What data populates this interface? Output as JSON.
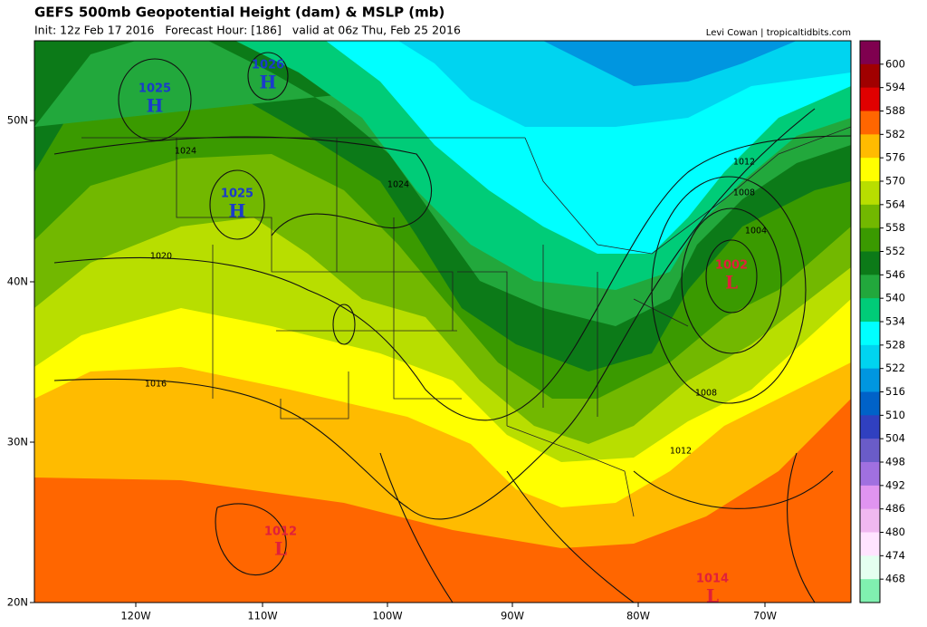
{
  "header": {
    "title": "GEFS 500mb Geopotential Height (dam) & MSLP (mb)",
    "subtitle": "Init: 12z Feb 17 2016   Forecast Hour: [186]   valid at 06z Thu, Feb 25 2016",
    "credit": "Levi Cowan | tropicaltidbits.com"
  },
  "colorbar": {
    "levels": [
      600,
      594,
      588,
      582,
      576,
      570,
      564,
      558,
      552,
      546,
      540,
      534,
      528,
      522,
      516,
      510,
      504,
      498,
      492,
      486,
      480,
      474,
      468
    ],
    "colors": [
      "#7f004f",
      "#a00000",
      "#e00000",
      "#ff6600",
      "#ffbb00",
      "#ffff00",
      "#b8de00",
      "#72b800",
      "#3a9a00",
      "#0c7a18",
      "#22a83c",
      "#00cc78",
      "#00ffff",
      "#00d4f0",
      "#0096e0",
      "#0062c8",
      "#3040c0",
      "#6a5cc8",
      "#a070e0",
      "#e094f0",
      "#f0b8f0",
      "#ffe4ff",
      "#e4fff0",
      "#80f0b0"
    ]
  },
  "axes": {
    "longitudes": [
      "120W",
      "110W",
      "100W",
      "90W",
      "80W",
      "70W"
    ],
    "latitudes": [
      "50N",
      "40N",
      "30N",
      "20N"
    ]
  },
  "pressure_centers": [
    {
      "value": 1025,
      "symbol": "H",
      "color": "#1a3acc"
    },
    {
      "value": 1026,
      "symbol": "H",
      "color": "#1a3acc"
    },
    {
      "value": 1025,
      "symbol": "H",
      "color": "#1a3acc"
    },
    {
      "value": 1002,
      "symbol": "L",
      "color": "#e0203a"
    },
    {
      "value": 1012,
      "symbol": "L",
      "color": "#e0203a"
    },
    {
      "value": 1014,
      "symbol": "L",
      "color": "#e0203a"
    }
  ],
  "isobar_labels": [
    1024,
    1024,
    1020,
    1016,
    1012,
    1008,
    1004,
    1008,
    1012
  ]
}
